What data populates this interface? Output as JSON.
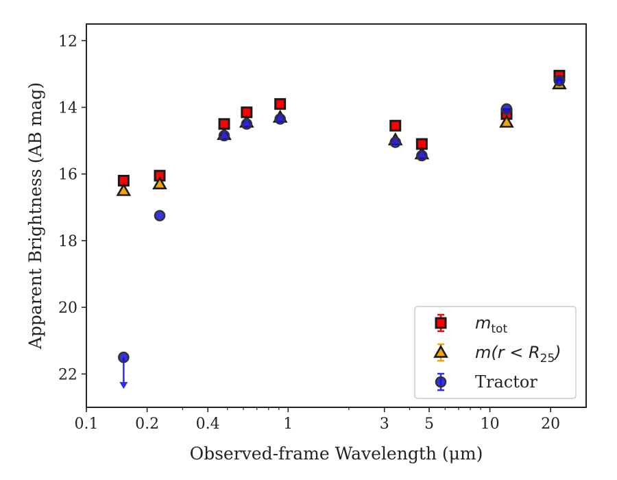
{
  "chart_data": {
    "type": "scatter",
    "title": "",
    "xlabel": "Observed-frame Wavelength (μm)",
    "ylabel": "Apparent Brightness (AB mag)",
    "xscale": "log",
    "xlim": [
      0.1,
      30
    ],
    "ylim": [
      23,
      11.5
    ],
    "y_inverted": true,
    "grid": false,
    "legend_position": "lower-right",
    "x_ticks": [
      0.1,
      0.2,
      0.4,
      1,
      3,
      5,
      10,
      20
    ],
    "x_tick_labels": [
      "0.1",
      "0.2",
      "0.4",
      "1",
      "3",
      "5",
      "10",
      "20"
    ],
    "y_ticks": [
      12,
      14,
      16,
      18,
      20,
      22
    ],
    "y_tick_labels": [
      "12",
      "14",
      "16",
      "18",
      "20",
      "22"
    ],
    "series": [
      {
        "name": "m_tot",
        "legend_label": {
          "base": "m",
          "sub": "tot"
        },
        "marker": "square",
        "color": "#ff0000",
        "edge_color": "#1a1a1a",
        "x": [
          0.153,
          0.231,
          0.482,
          0.623,
          0.913,
          3.4,
          4.6,
          12.1,
          22.1
        ],
        "y": [
          16.2,
          16.05,
          14.5,
          14.15,
          13.9,
          14.55,
          15.1,
          14.2,
          13.05
        ]
      },
      {
        "name": "m(r < R25)",
        "legend_label": {
          "base": "m(r < R",
          "sub": "25",
          "tail": ")"
        },
        "marker": "triangle",
        "color": "#f0a30a",
        "edge_color": "#1a1a1a",
        "x": [
          0.153,
          0.231,
          0.482,
          0.623,
          0.913,
          3.4,
          4.6,
          12.1,
          22.1
        ],
        "y": [
          16.5,
          16.3,
          14.82,
          14.45,
          14.3,
          14.98,
          15.4,
          14.45,
          13.3
        ]
      },
      {
        "name": "Tractor",
        "legend_label": {
          "base": "Tractor"
        },
        "marker": "circle",
        "color": "#1010dd",
        "edge_color": "#333333",
        "x": [
          0.153,
          0.231,
          0.482,
          0.623,
          0.913,
          3.4,
          4.6,
          12.1,
          22.1
        ],
        "y": [
          21.5,
          17.25,
          14.85,
          14.5,
          14.35,
          15.05,
          15.45,
          14.05,
          13.2
        ],
        "upper_limit_index": 0,
        "upper_limit_color": "#2a2aff"
      }
    ]
  }
}
